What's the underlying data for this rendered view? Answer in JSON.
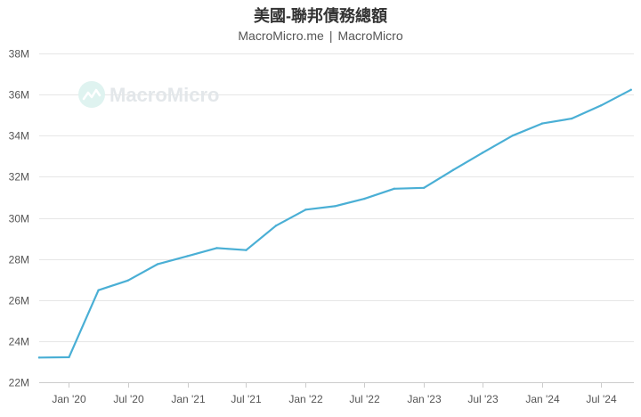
{
  "header": {
    "title": "美國-聯邦債務總額",
    "source_site": "MacroMicro.me",
    "source_separator": "|",
    "source_name": "MacroMicro"
  },
  "watermark": {
    "text": "MacroMicro"
  },
  "colors": {
    "line": "#4aafd5",
    "grid": "#e6e6e6",
    "axis": "#cccccc",
    "watermark": "#dff3f0"
  },
  "chart_data": {
    "type": "line",
    "title": "美國-聯邦債務總額",
    "xlabel": "",
    "ylabel": "",
    "ylim": [
      22,
      38
    ],
    "y_ticks": [
      22,
      24,
      26,
      28,
      30,
      32,
      34,
      36,
      38
    ],
    "y_tick_labels": [
      "22M",
      "24M",
      "26M",
      "28M",
      "30M",
      "32M",
      "34M",
      "36M",
      "38M"
    ],
    "x_range": [
      "2019-10-01",
      "2024-10-10"
    ],
    "x_ticks": [
      "2020-01-01",
      "2020-07-01",
      "2021-01-01",
      "2021-07-01",
      "2022-01-01",
      "2022-07-01",
      "2023-01-01",
      "2023-07-01",
      "2024-01-01",
      "2024-07-01"
    ],
    "x_tick_labels": [
      "Jan '20",
      "Jul '20",
      "Jan '21",
      "Jul '21",
      "Jan '22",
      "Jul '22",
      "Jan '23",
      "Jul '23",
      "Jan '24",
      "Jul '24"
    ],
    "grid": true,
    "series": [
      {
        "x": [
          "2019-10-01",
          "2020-01-01",
          "2020-04-01",
          "2020-07-01",
          "2020-10-01",
          "2021-01-01",
          "2021-04-01",
          "2021-07-01",
          "2021-10-01",
          "2022-01-01",
          "2022-04-01",
          "2022-07-01",
          "2022-10-01",
          "2023-01-01",
          "2023-04-01",
          "2023-07-01",
          "2023-10-01",
          "2024-01-01",
          "2024-04-01",
          "2024-07-01",
          "2024-10-01"
        ],
        "values": [
          23.2,
          23.22,
          26.48,
          26.95,
          27.75,
          28.14,
          28.53,
          28.43,
          29.62,
          30.4,
          30.57,
          30.93,
          31.42,
          31.46,
          32.33,
          33.17,
          34.0,
          34.59,
          34.83,
          35.47,
          36.23
        ]
      }
    ]
  }
}
